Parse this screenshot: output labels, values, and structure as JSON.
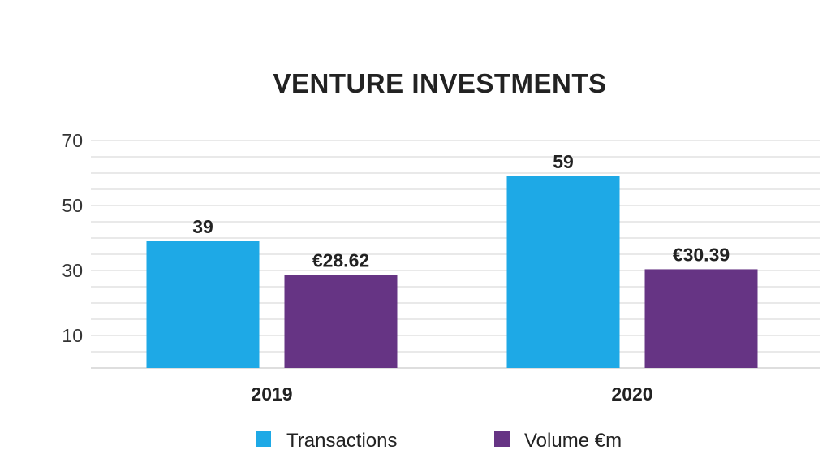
{
  "chart_data": {
    "type": "bar",
    "title": "VENTURE INVESTMENTS",
    "categories": [
      "2019",
      "2020"
    ],
    "series": [
      {
        "name": "Transactions",
        "values": [
          39,
          59
        ],
        "labels": [
          "39",
          "59"
        ],
        "color": "#1ea9e6"
      },
      {
        "name": "Volume €m",
        "values": [
          28.62,
          30.39
        ],
        "labels": [
          "€28.62",
          "€30.39"
        ],
        "color": "#663484"
      }
    ],
    "yticks": [
      "10",
      "30",
      "50",
      "70"
    ],
    "ylim": [
      0,
      70
    ],
    "grid": true,
    "legend_position": "bottom"
  }
}
